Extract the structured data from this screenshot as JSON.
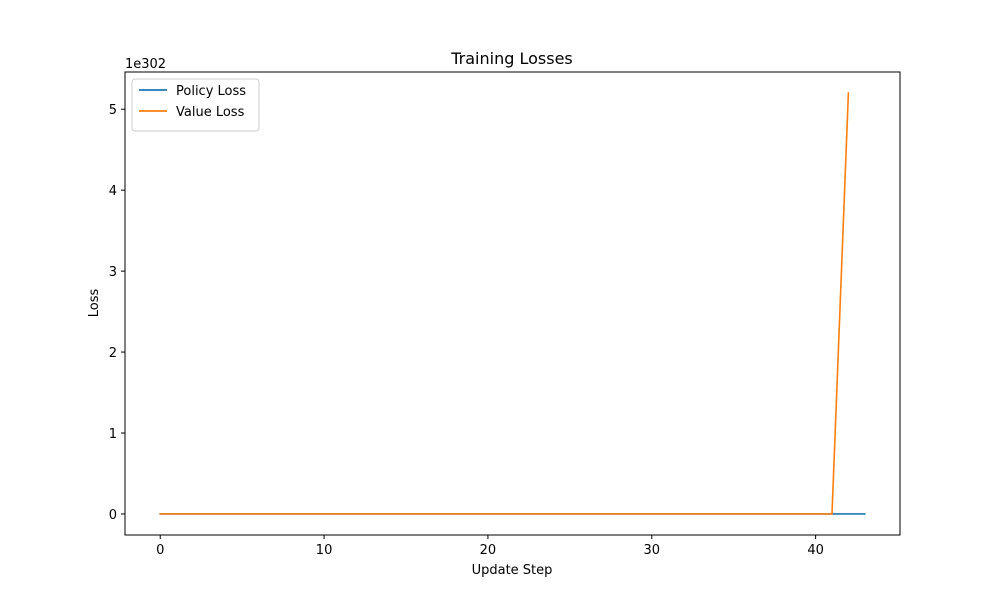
{
  "chart_data": {
    "type": "line",
    "title": "Training Losses",
    "xlabel": "Update Step",
    "ylabel": "Loss",
    "y_offset_label": "1e302",
    "y_scale_factor": 1e+302,
    "xlim": [
      -2.15,
      45.15
    ],
    "ylim": [
      -0.26,
      5.46
    ],
    "x_ticks": [
      0,
      10,
      20,
      30,
      40
    ],
    "x_tick_labels": [
      "0",
      "10",
      "20",
      "30",
      "40"
    ],
    "y_ticks": [
      0,
      1,
      2,
      3,
      4,
      5
    ],
    "y_tick_labels": [
      "0",
      "1",
      "2",
      "3",
      "4",
      "5"
    ],
    "grid": false,
    "legend_position": "top-left",
    "series": [
      {
        "name": "Policy Loss",
        "color": "#1f77b4",
        "x": [
          0,
          1,
          2,
          3,
          4,
          5,
          6,
          7,
          8,
          9,
          10,
          11,
          12,
          13,
          14,
          15,
          16,
          17,
          18,
          19,
          20,
          21,
          22,
          23,
          24,
          25,
          26,
          27,
          28,
          29,
          30,
          31,
          32,
          33,
          34,
          35,
          36,
          37,
          38,
          39,
          40,
          41,
          42,
          43
        ],
        "values": [
          0,
          0,
          0,
          0,
          0,
          0,
          0,
          0,
          0,
          0,
          0,
          0,
          0,
          0,
          0,
          0,
          0,
          0,
          0,
          0,
          0,
          0,
          0,
          0,
          0,
          0,
          0,
          0,
          0,
          0,
          0,
          0,
          0,
          0,
          0,
          0,
          0,
          0,
          0,
          0,
          0,
          0,
          0,
          0
        ]
      },
      {
        "name": "Value Loss",
        "color": "#ff7f0e",
        "x": [
          0,
          1,
          2,
          3,
          4,
          5,
          6,
          7,
          8,
          9,
          10,
          11,
          12,
          13,
          14,
          15,
          16,
          17,
          18,
          19,
          20,
          21,
          22,
          23,
          24,
          25,
          26,
          27,
          28,
          29,
          30,
          31,
          32,
          33,
          34,
          35,
          36,
          37,
          38,
          39,
          40,
          41,
          42
        ],
        "values": [
          0,
          0,
          0,
          0,
          0,
          0,
          0,
          0,
          0,
          0,
          0,
          0,
          0,
          0,
          0,
          0,
          0,
          0,
          0,
          0,
          0,
          0,
          0,
          0,
          0,
          0,
          0,
          0,
          0,
          0,
          0,
          0,
          0,
          0,
          0,
          0,
          0,
          0,
          0,
          0,
          0,
          0,
          5.2
        ]
      }
    ]
  }
}
